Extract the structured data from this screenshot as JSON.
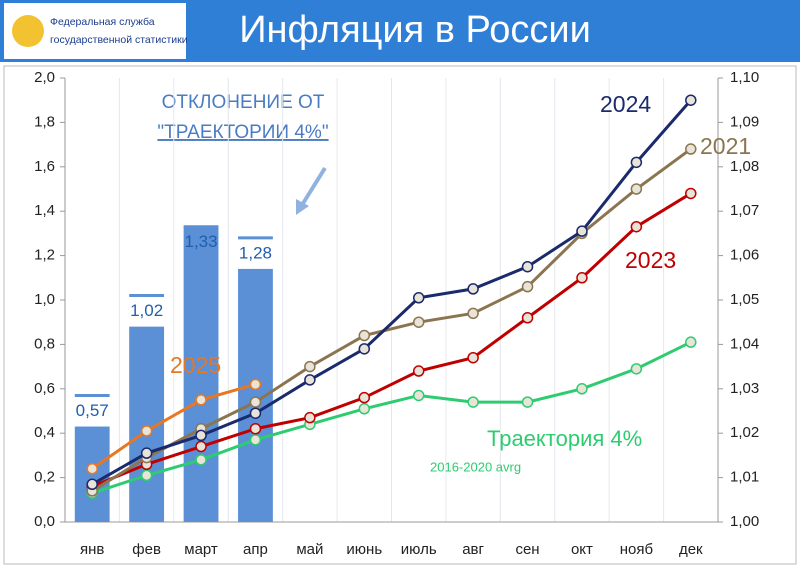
{
  "header": {
    "logo_text": [
      "Федеральная служба",
      "государственной статистики"
    ],
    "title": "Инфляция в России"
  },
  "chart_data": {
    "type": "bar-line",
    "categories": [
      "янв",
      "фев",
      "март",
      "апр",
      "май",
      "июнь",
      "июль",
      "авг",
      "сен",
      "окт",
      "нояб",
      "дек"
    ],
    "ylim": [
      0,
      2.0
    ],
    "yticks": [
      {
        "value": 0,
        "label": "0,0"
      },
      {
        "value": 0.2,
        "label": "0,2"
      },
      {
        "value": 0.4,
        "label": "0,4"
      },
      {
        "value": 0.6,
        "label": "0,6"
      },
      {
        "value": 0.8,
        "label": "0,8"
      },
      {
        "value": 1.0,
        "label": "1,0"
      },
      {
        "value": 1.2,
        "label": "1,2"
      },
      {
        "value": 1.4,
        "label": "1,4"
      },
      {
        "value": 1.6,
        "label": "1,6"
      },
      {
        "value": 1.8,
        "label": "1,8"
      },
      {
        "value": 2.0,
        "label": "2,0"
      }
    ],
    "y2lim": [
      1.0,
      1.1
    ],
    "y2ticks": [
      {
        "value": 1.0,
        "label": "1,00"
      },
      {
        "value": 1.01,
        "label": "1,01"
      },
      {
        "value": 1.02,
        "label": "1,02"
      },
      {
        "value": 1.03,
        "label": "1,03"
      },
      {
        "value": 1.04,
        "label": "1,04"
      },
      {
        "value": 1.05,
        "label": "1,05"
      },
      {
        "value": 1.06,
        "label": "1,06"
      },
      {
        "value": 1.07,
        "label": "1,07"
      },
      {
        "value": 1.08,
        "label": "1,08"
      },
      {
        "value": 1.09,
        "label": "1,09"
      },
      {
        "value": 1.1,
        "label": "1,10"
      }
    ],
    "bars": {
      "color": "#5b8fd6",
      "values": [
        0.43,
        0.88,
        1.33,
        1.14
      ]
    },
    "deviation": {
      "color": "#5b8fd6",
      "values": [
        0.57,
        1.02,
        1.33,
        1.28
      ],
      "value_labels": [
        "0,57",
        "1,02",
        "1,33",
        "1,28"
      ]
    },
    "annotation": [
      "ОТКЛОНЕНИЕ ОТ",
      "\"ТРАЕКТОРИИ 4%\""
    ],
    "trajectory_note": "2016-2020 avrg",
    "series": [
      {
        "name": "Траектория 4%",
        "color": "#2ecc71",
        "axis": "y2",
        "values": [
          1.0065,
          1.0105,
          1.014,
          1.0185,
          1.022,
          1.0255,
          1.0285,
          1.027,
          1.027,
          1.03,
          1.0345,
          1.0405
        ]
      },
      {
        "name": "2023",
        "color": "#c00000",
        "axis": "y2",
        "values": [
          1.008,
          1.013,
          1.017,
          1.021,
          1.0235,
          1.028,
          1.034,
          1.037,
          1.046,
          1.055,
          1.0665,
          1.074
        ]
      },
      {
        "name": "2021",
        "color": "#8b7550",
        "axis": "y2",
        "values": [
          1.007,
          1.0145,
          1.021,
          1.027,
          1.035,
          1.042,
          1.045,
          1.047,
          1.053,
          1.065,
          1.075,
          1.084
        ]
      },
      {
        "name": "2024",
        "color": "#1a2a6c",
        "axis": "y2",
        "values": [
          1.0085,
          1.0155,
          1.0195,
          1.0245,
          1.032,
          1.039,
          1.0505,
          1.0525,
          1.0575,
          1.0655,
          1.081,
          1.095
        ]
      },
      {
        "name": "2025",
        "color": "#e87722",
        "axis": "y2",
        "values": [
          1.012,
          1.0205,
          1.0275,
          1.031,
          null,
          null,
          null,
          null,
          null,
          null,
          null,
          null
        ]
      }
    ],
    "grid": false
  }
}
